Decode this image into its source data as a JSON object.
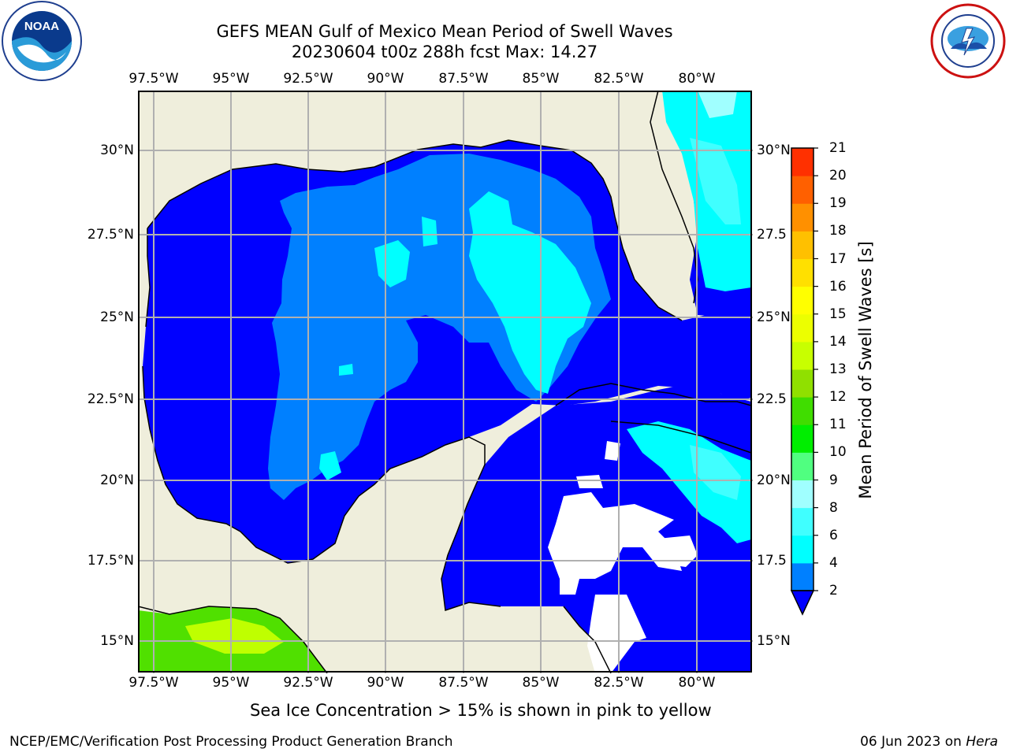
{
  "title_line1": "GEFS MEAN Gulf of Mexico Mean Period of Swell Waves",
  "title_line2": "20230604 t00z 288h fcst   Max: 14.27",
  "lon_ticks": [
    "97.5°W",
    "95°W",
    "92.5°W",
    "90°W",
    "87.5°W",
    "85°W",
    "82.5°W",
    "80°W"
  ],
  "lat_ticks_left": [
    "30°N",
    "27.5°N",
    "25°N",
    "22.5°N",
    "20°N",
    "17.5°N",
    "15°N"
  ],
  "lat_ticks_right": [
    "30°N",
    "27.5",
    "25°N",
    "22.5",
    "20°N",
    "17.5",
    "15°N"
  ],
  "colorbar": {
    "label": "Mean Period of Swell Waves [s]",
    "ticks": [
      "2",
      "4",
      "6",
      "8",
      "9",
      "10",
      "11",
      "12",
      "13",
      "14",
      "15",
      "16",
      "17",
      "18",
      "19",
      "20",
      "21"
    ],
    "colors": [
      "#0080ff",
      "#00ffff",
      "#40ffff",
      "#a0ffff",
      "#50ff80",
      "#00ee00",
      "#40dd00",
      "#90e000",
      "#c8ff00",
      "#ecff00",
      "#ffff00",
      "#ffe000",
      "#ffc000",
      "#ff9000",
      "#ff6000",
      "#ff3000"
    ],
    "extend_color": "#0000ff"
  },
  "ice_note": "Sea Ice Concentration > 15% is shown in pink to yellow",
  "footer_left": "NCEP/EMC/Verification Post Processing Product Generation Branch",
  "footer_right_date": "06 Jun 2023 on",
  "footer_right_host": "Hera",
  "map_colors": {
    "land": "#efeedc",
    "swell_2_4": "#0000ff",
    "swell_4_6": "#0080ff",
    "swell_6_8": "#00ffff",
    "swell_8_9": "#40ffff",
    "swell_9_10": "#a0ffff"
  }
}
